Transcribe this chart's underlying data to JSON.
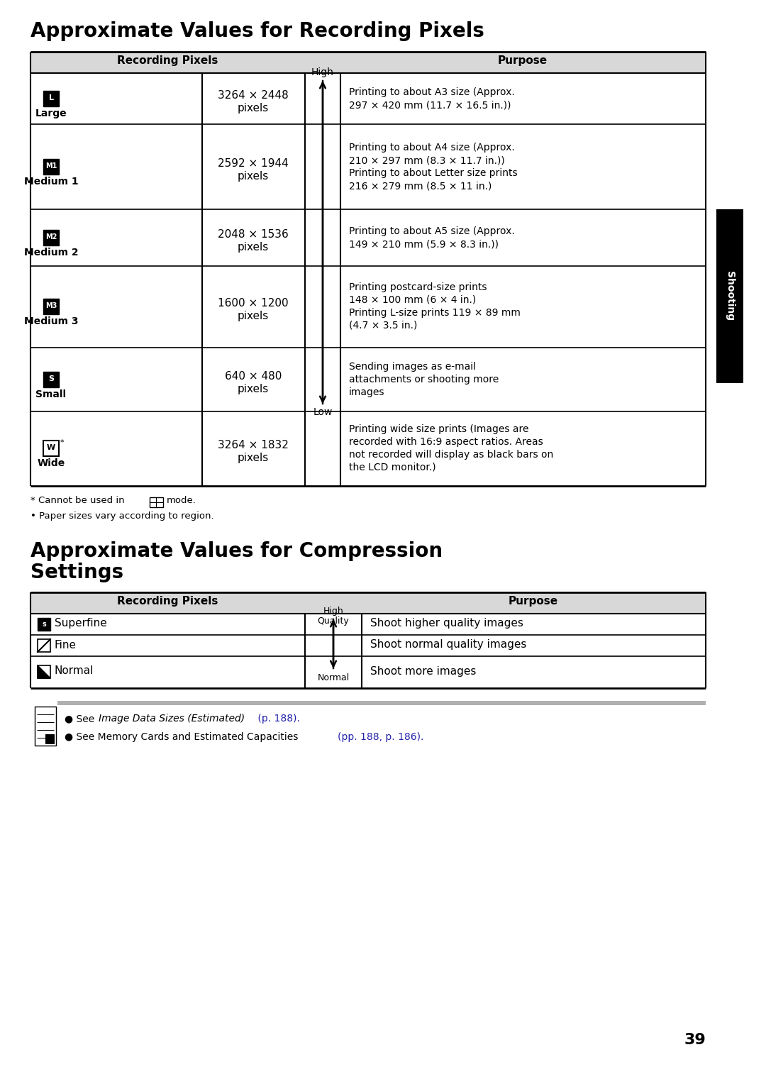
{
  "title1": "Approximate Values for Recording Pixels",
  "title2_line1": "Approximate Values for Compression",
  "title2_line2": "Settings",
  "table1_header_col1": "Recording Pixels",
  "table1_header_col2": "Purpose",
  "table1_rows": [
    {
      "icon_label": "L",
      "icon_bg": "black",
      "name": "Large",
      "pixels_line1": "3264 × 2448",
      "pixels_line2": "pixels",
      "arrow_label": "High",
      "purpose": "Printing to about A3 size (Approx.\n297 × 420 mm (11.7 × 16.5 in.))"
    },
    {
      "icon_label": "M1",
      "icon_bg": "black",
      "name": "Medium 1",
      "pixels_line1": "2592 × 1944",
      "pixels_line2": "pixels",
      "arrow_label": "",
      "purpose": "Printing to about A4 size (Approx.\n210 × 297 mm (8.3 × 11.7 in.))\nPrinting to about Letter size prints\n216 × 279 mm (8.5 × 11 in.)"
    },
    {
      "icon_label": "M2",
      "icon_bg": "black",
      "name": "Medium 2",
      "pixels_line1": "2048 × 1536",
      "pixels_line2": "pixels",
      "arrow_label": "",
      "purpose": "Printing to about A5 size (Approx.\n149 × 210 mm (5.9 × 8.3 in.))"
    },
    {
      "icon_label": "M3",
      "icon_bg": "black",
      "name": "Medium 3",
      "pixels_line1": "1600 × 1200",
      "pixels_line2": "pixels",
      "arrow_label": "",
      "purpose": "Printing postcard-size prints\n148 × 100 mm (6 × 4 in.)\nPrinting L-size prints 119 × 89 mm\n(4.7 × 3.5 in.)"
    },
    {
      "icon_label": "S",
      "icon_bg": "black",
      "name": "Small",
      "pixels_line1": "640 × 480",
      "pixels_line2": "pixels",
      "arrow_label": "Low",
      "purpose": "Sending images as e-mail\nattachments or shooting more\nimages"
    },
    {
      "icon_label": "W",
      "icon_bg": "white",
      "name": "Wide",
      "pixels_line1": "3264 × 1832",
      "pixels_line2": "pixels",
      "arrow_label": "",
      "purpose": "Printing wide size prints (Images are\nrecorded with 16:9 aspect ratios. Areas\nnot recorded will display as black bars on\nthe LCD monitor.)"
    }
  ],
  "table2_header_col1": "Recording Pixels",
  "table2_header_col2": "Purpose",
  "table2_rows": [
    {
      "icon_style": "superfine",
      "name": "Superfine",
      "purpose": "Shoot higher quality images"
    },
    {
      "icon_style": "fine",
      "name": "Fine",
      "purpose": "Shoot normal quality images"
    },
    {
      "icon_style": "normal",
      "name": "Normal",
      "purpose": "Shoot more images"
    }
  ],
  "page_number": "39",
  "side_tab_text": "Shooting",
  "link_color": "#2222aa",
  "note_bg": "#c8c8c8"
}
